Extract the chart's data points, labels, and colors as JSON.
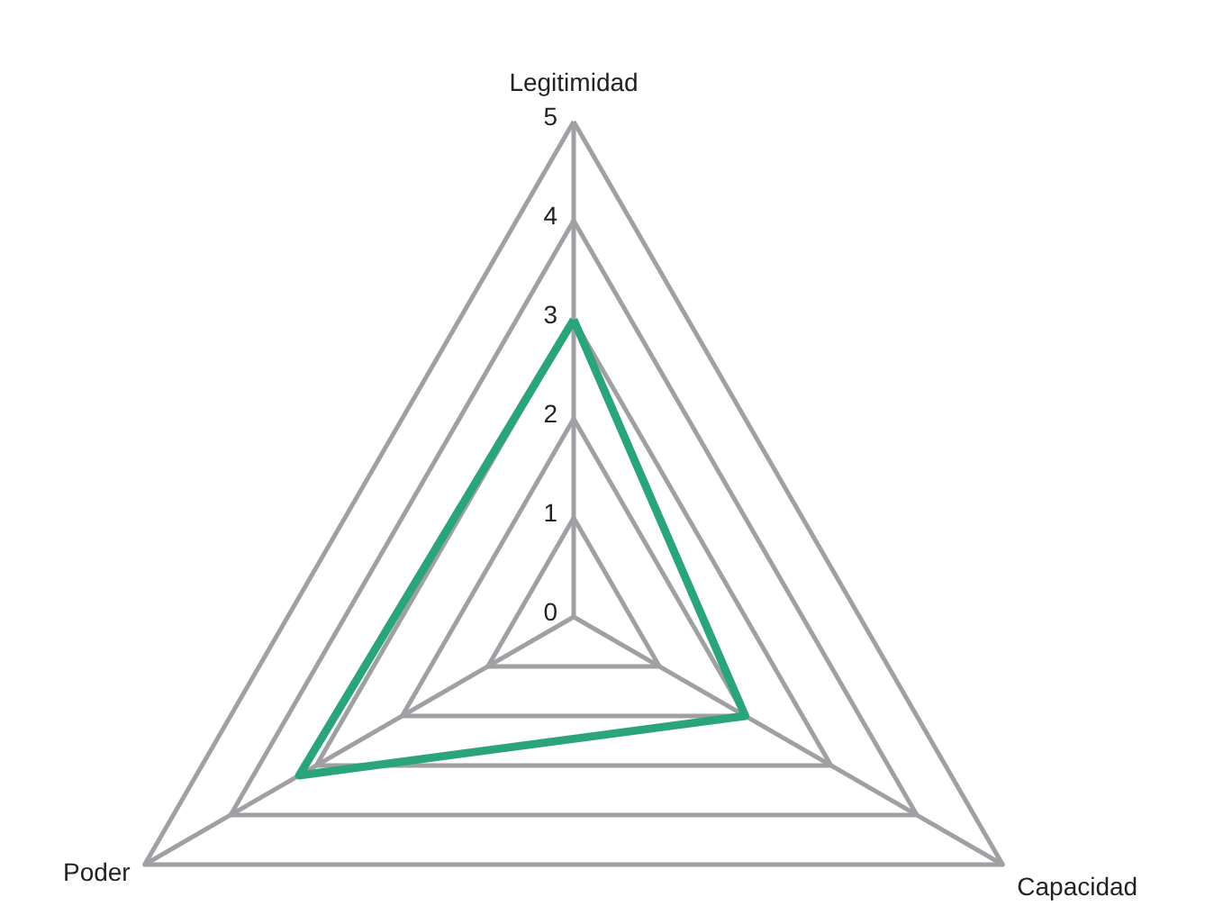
{
  "chart_data": {
    "type": "radar",
    "categories": [
      "Legitimidad",
      "Capacidad",
      "Poder"
    ],
    "ylim": [
      0,
      5
    ],
    "yticks": [
      0,
      1,
      2,
      3,
      4,
      5
    ],
    "grid": true,
    "series": [
      {
        "color": "#2aa57a",
        "values": [
          3,
          2,
          3.2
        ]
      }
    ]
  }
}
